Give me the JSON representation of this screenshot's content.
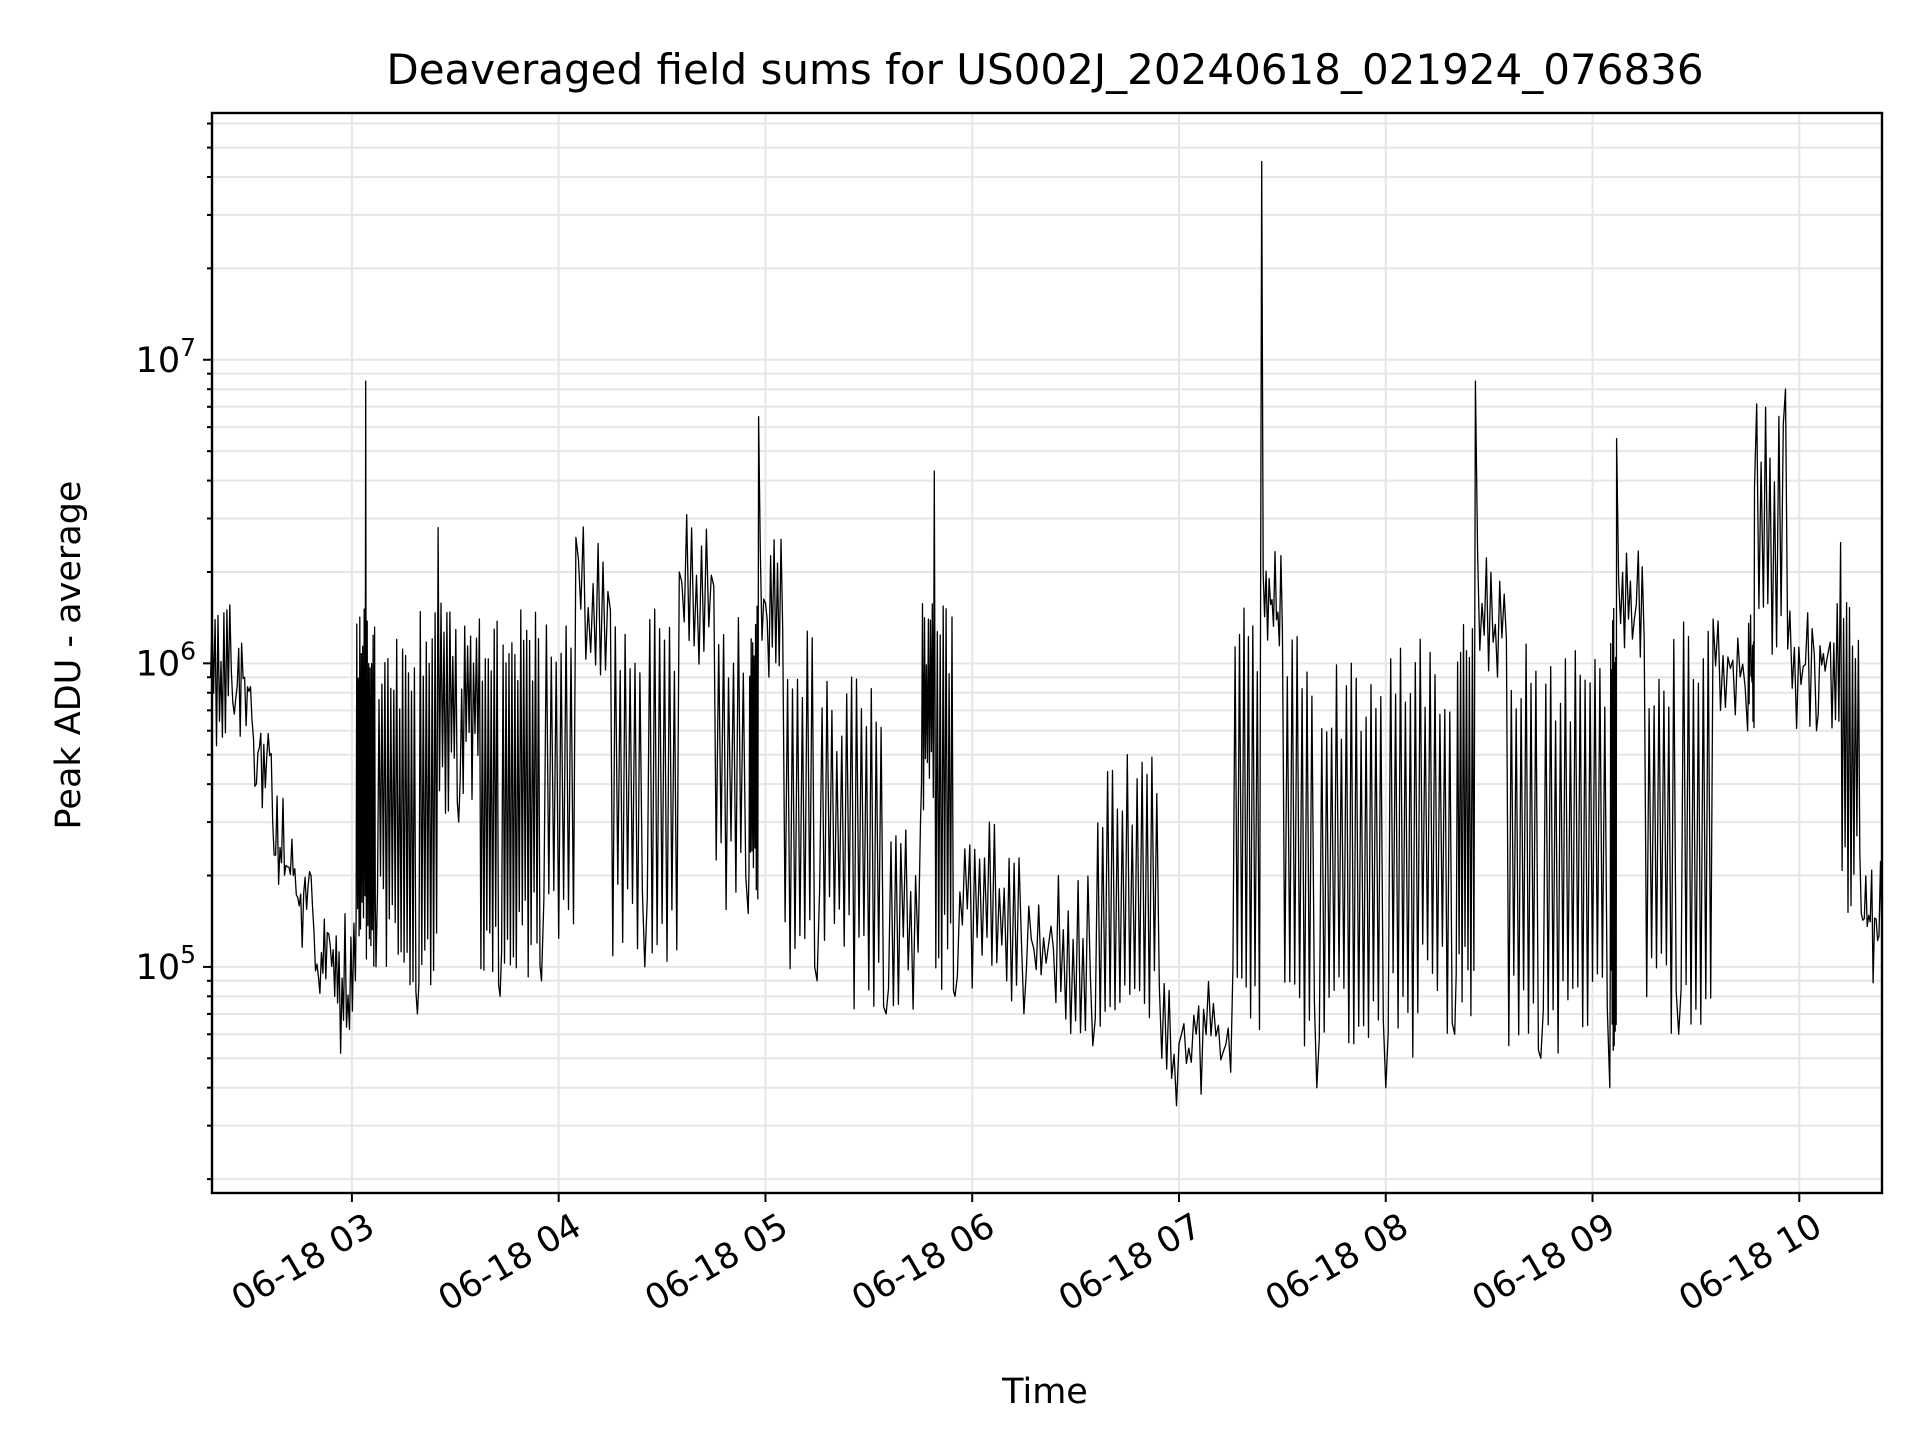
{
  "chart_data": {
    "type": "line",
    "title": "Deaveraged field sums for US002J_20240618_021924_076836",
    "xlabel": "Time",
    "ylabel": "Peak ADU - average",
    "yscale": "log",
    "ylim": [
      18000,
      65000000
    ],
    "xlim": [
      "2024-06-18T02:19:24",
      "2024-06-18T10:24:00"
    ],
    "x_ticks": [
      {
        "t": "2024-06-18T03:00",
        "label": "06-18 03"
      },
      {
        "t": "2024-06-18T04:00",
        "label": "06-18 04"
      },
      {
        "t": "2024-06-18T05:00",
        "label": "06-18 05"
      },
      {
        "t": "2024-06-18T06:00",
        "label": "06-18 06"
      },
      {
        "t": "2024-06-18T07:00",
        "label": "06-18 07"
      },
      {
        "t": "2024-06-18T08:00",
        "label": "06-18 08"
      },
      {
        "t": "2024-06-18T09:00",
        "label": "06-18 09"
      },
      {
        "t": "2024-06-18T10:00",
        "label": "06-18 10"
      }
    ],
    "y_ticks": [
      {
        "value": 100000,
        "base": "10",
        "exp": "5"
      },
      {
        "value": 1000000,
        "base": "10",
        "exp": "6"
      },
      {
        "value": 10000000,
        "base": "10",
        "exp": "7"
      }
    ],
    "grid": true,
    "line_color": "#000000",
    "series": [
      {
        "points": [
          [
            "2024-06-18T02:19",
            900000
          ],
          [
            "2024-06-18T02:25",
            950000
          ],
          [
            "2024-06-18T02:31",
            650000
          ],
          [
            "2024-06-18T02:37",
            300000
          ],
          [
            "2024-06-18T02:43",
            200000
          ],
          [
            "2024-06-18T02:49",
            130000
          ],
          [
            "2024-06-18T02:55",
            80000
          ],
          [
            "2024-06-18T03:01",
            90000
          ],
          [
            "2024-06-18T03:04",
            8500000
          ],
          [
            "2024-06-18T03:07",
            100000
          ],
          [
            "2024-06-18T03:13",
            1200000
          ],
          [
            "2024-06-18T03:19",
            70000
          ],
          [
            "2024-06-18T03:25",
            2800000
          ],
          [
            "2024-06-18T03:31",
            300000
          ],
          [
            "2024-06-18T03:37",
            1400000
          ],
          [
            "2024-06-18T03:43",
            80000
          ],
          [
            "2024-06-18T03:49",
            1500000
          ],
          [
            "2024-06-18T03:55",
            90000
          ],
          [
            "2024-06-18T04:05",
            2600000
          ],
          [
            "2024-06-18T04:15",
            1500000
          ],
          [
            "2024-06-18T04:25",
            100000
          ],
          [
            "2024-06-18T04:35",
            2000000
          ],
          [
            "2024-06-18T04:45",
            1800000
          ],
          [
            "2024-06-18T04:55",
            150000
          ],
          [
            "2024-06-18T04:58",
            6500000
          ],
          [
            "2024-06-18T05:05",
            1300000
          ],
          [
            "2024-06-18T05:15",
            90000
          ],
          [
            "2024-06-18T05:25",
            900000
          ],
          [
            "2024-06-18T05:35",
            70000
          ],
          [
            "2024-06-18T05:45",
            300000
          ],
          [
            "2024-06-18T05:49",
            4300000
          ],
          [
            "2024-06-18T05:55",
            80000
          ],
          [
            "2024-06-18T06:05",
            300000
          ],
          [
            "2024-06-18T06:15",
            70000
          ],
          [
            "2024-06-18T06:25",
            200000
          ],
          [
            "2024-06-18T06:35",
            55000
          ],
          [
            "2024-06-18T06:45",
            500000
          ],
          [
            "2024-06-18T06:55",
            50000
          ],
          [
            "2024-06-18T07:05",
            60000
          ],
          [
            "2024-06-18T07:15",
            45000
          ],
          [
            "2024-06-18T07:24",
            45000000
          ],
          [
            "2024-06-18T07:30",
            1300000
          ],
          [
            "2024-06-18T07:40",
            40000
          ],
          [
            "2024-06-18T07:50",
            1000000
          ],
          [
            "2024-06-18T08:00",
            40000
          ],
          [
            "2024-06-18T08:10",
            1200000
          ],
          [
            "2024-06-18T08:20",
            60000
          ],
          [
            "2024-06-18T08:26",
            8500000
          ],
          [
            "2024-06-18T08:35",
            1200000
          ],
          [
            "2024-06-18T08:45",
            50000
          ],
          [
            "2024-06-18T08:55",
            1100000
          ],
          [
            "2024-06-18T09:05",
            40000
          ],
          [
            "2024-06-18T09:07",
            5500000
          ],
          [
            "2024-06-18T09:15",
            1200000
          ],
          [
            "2024-06-18T09:25",
            60000
          ],
          [
            "2024-06-18T09:35",
            1400000
          ],
          [
            "2024-06-18T09:45",
            600000
          ],
          [
            "2024-06-18T09:47",
            3800000
          ],
          [
            "2024-06-18T09:56",
            8000000
          ],
          [
            "2024-06-18T10:05",
            600000
          ],
          [
            "2024-06-18T10:12",
            2500000
          ],
          [
            "2024-06-18T10:18",
            150000
          ],
          [
            "2024-06-18T10:24",
            120000
          ]
        ]
      }
    ]
  }
}
